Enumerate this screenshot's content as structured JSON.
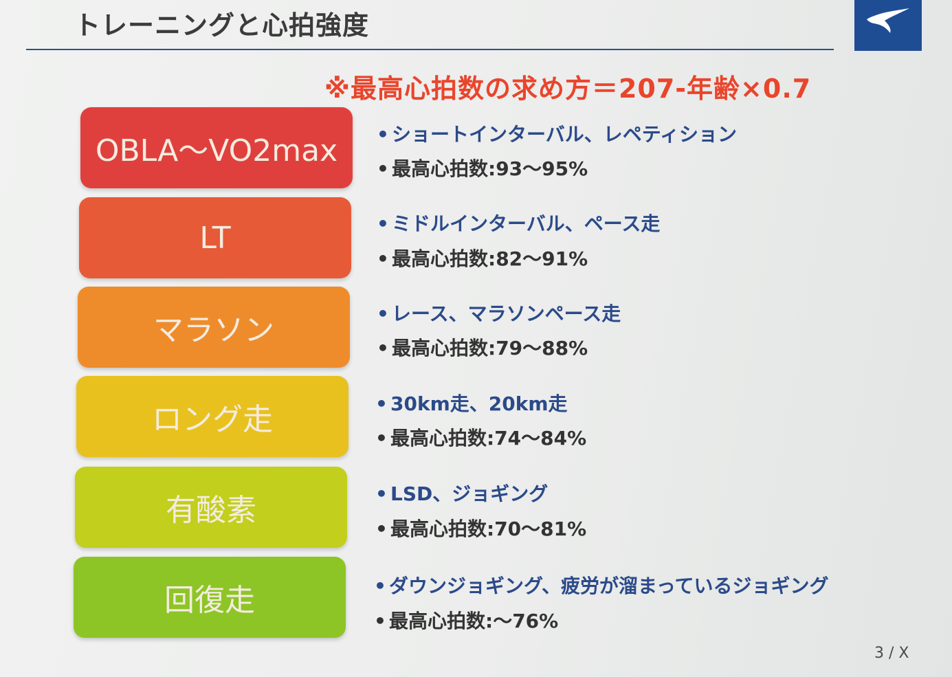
{
  "header": {
    "title": "トレーニングと心拍強度"
  },
  "formula": "※最高心拍数の求め方＝207-年齢×0.7",
  "zones": [
    {
      "label": "OBLA～VO2max",
      "description": "ショートインターバル、レペティション",
      "heart_rate": "最高心拍数:93～95%",
      "color": "#e0403d"
    },
    {
      "label": "LT",
      "description": "ミドルインターバル、ペース走",
      "heart_rate": "最高心拍数:82～91%",
      "color": "#e75a37"
    },
    {
      "label": "マラソン",
      "description": "レース、マラソンペース走",
      "heart_rate": "最高心拍数:79～88%",
      "color": "#ee8c2c"
    },
    {
      "label": "ロング走",
      "description": "30km走、20km走",
      "heart_rate": "最高心拍数:74～84%",
      "color": "#e8c11e"
    },
    {
      "label": "有酸素",
      "description": "LSD、ジョギング",
      "heart_rate": "最高心拍数:70～81%",
      "color": "#c2cf1c"
    },
    {
      "label": "回復走",
      "description": "ダウンジョギング、疲労が溜まっているジョギング",
      "heart_rate": "最高心拍数:～76%",
      "color": "#8dc526"
    }
  ],
  "bullet": "•",
  "page_indicator": "3 / X",
  "logo_icon": "runbird-logo-icon",
  "accent_color": "#e9452c",
  "brand_color": "#1f4d94"
}
